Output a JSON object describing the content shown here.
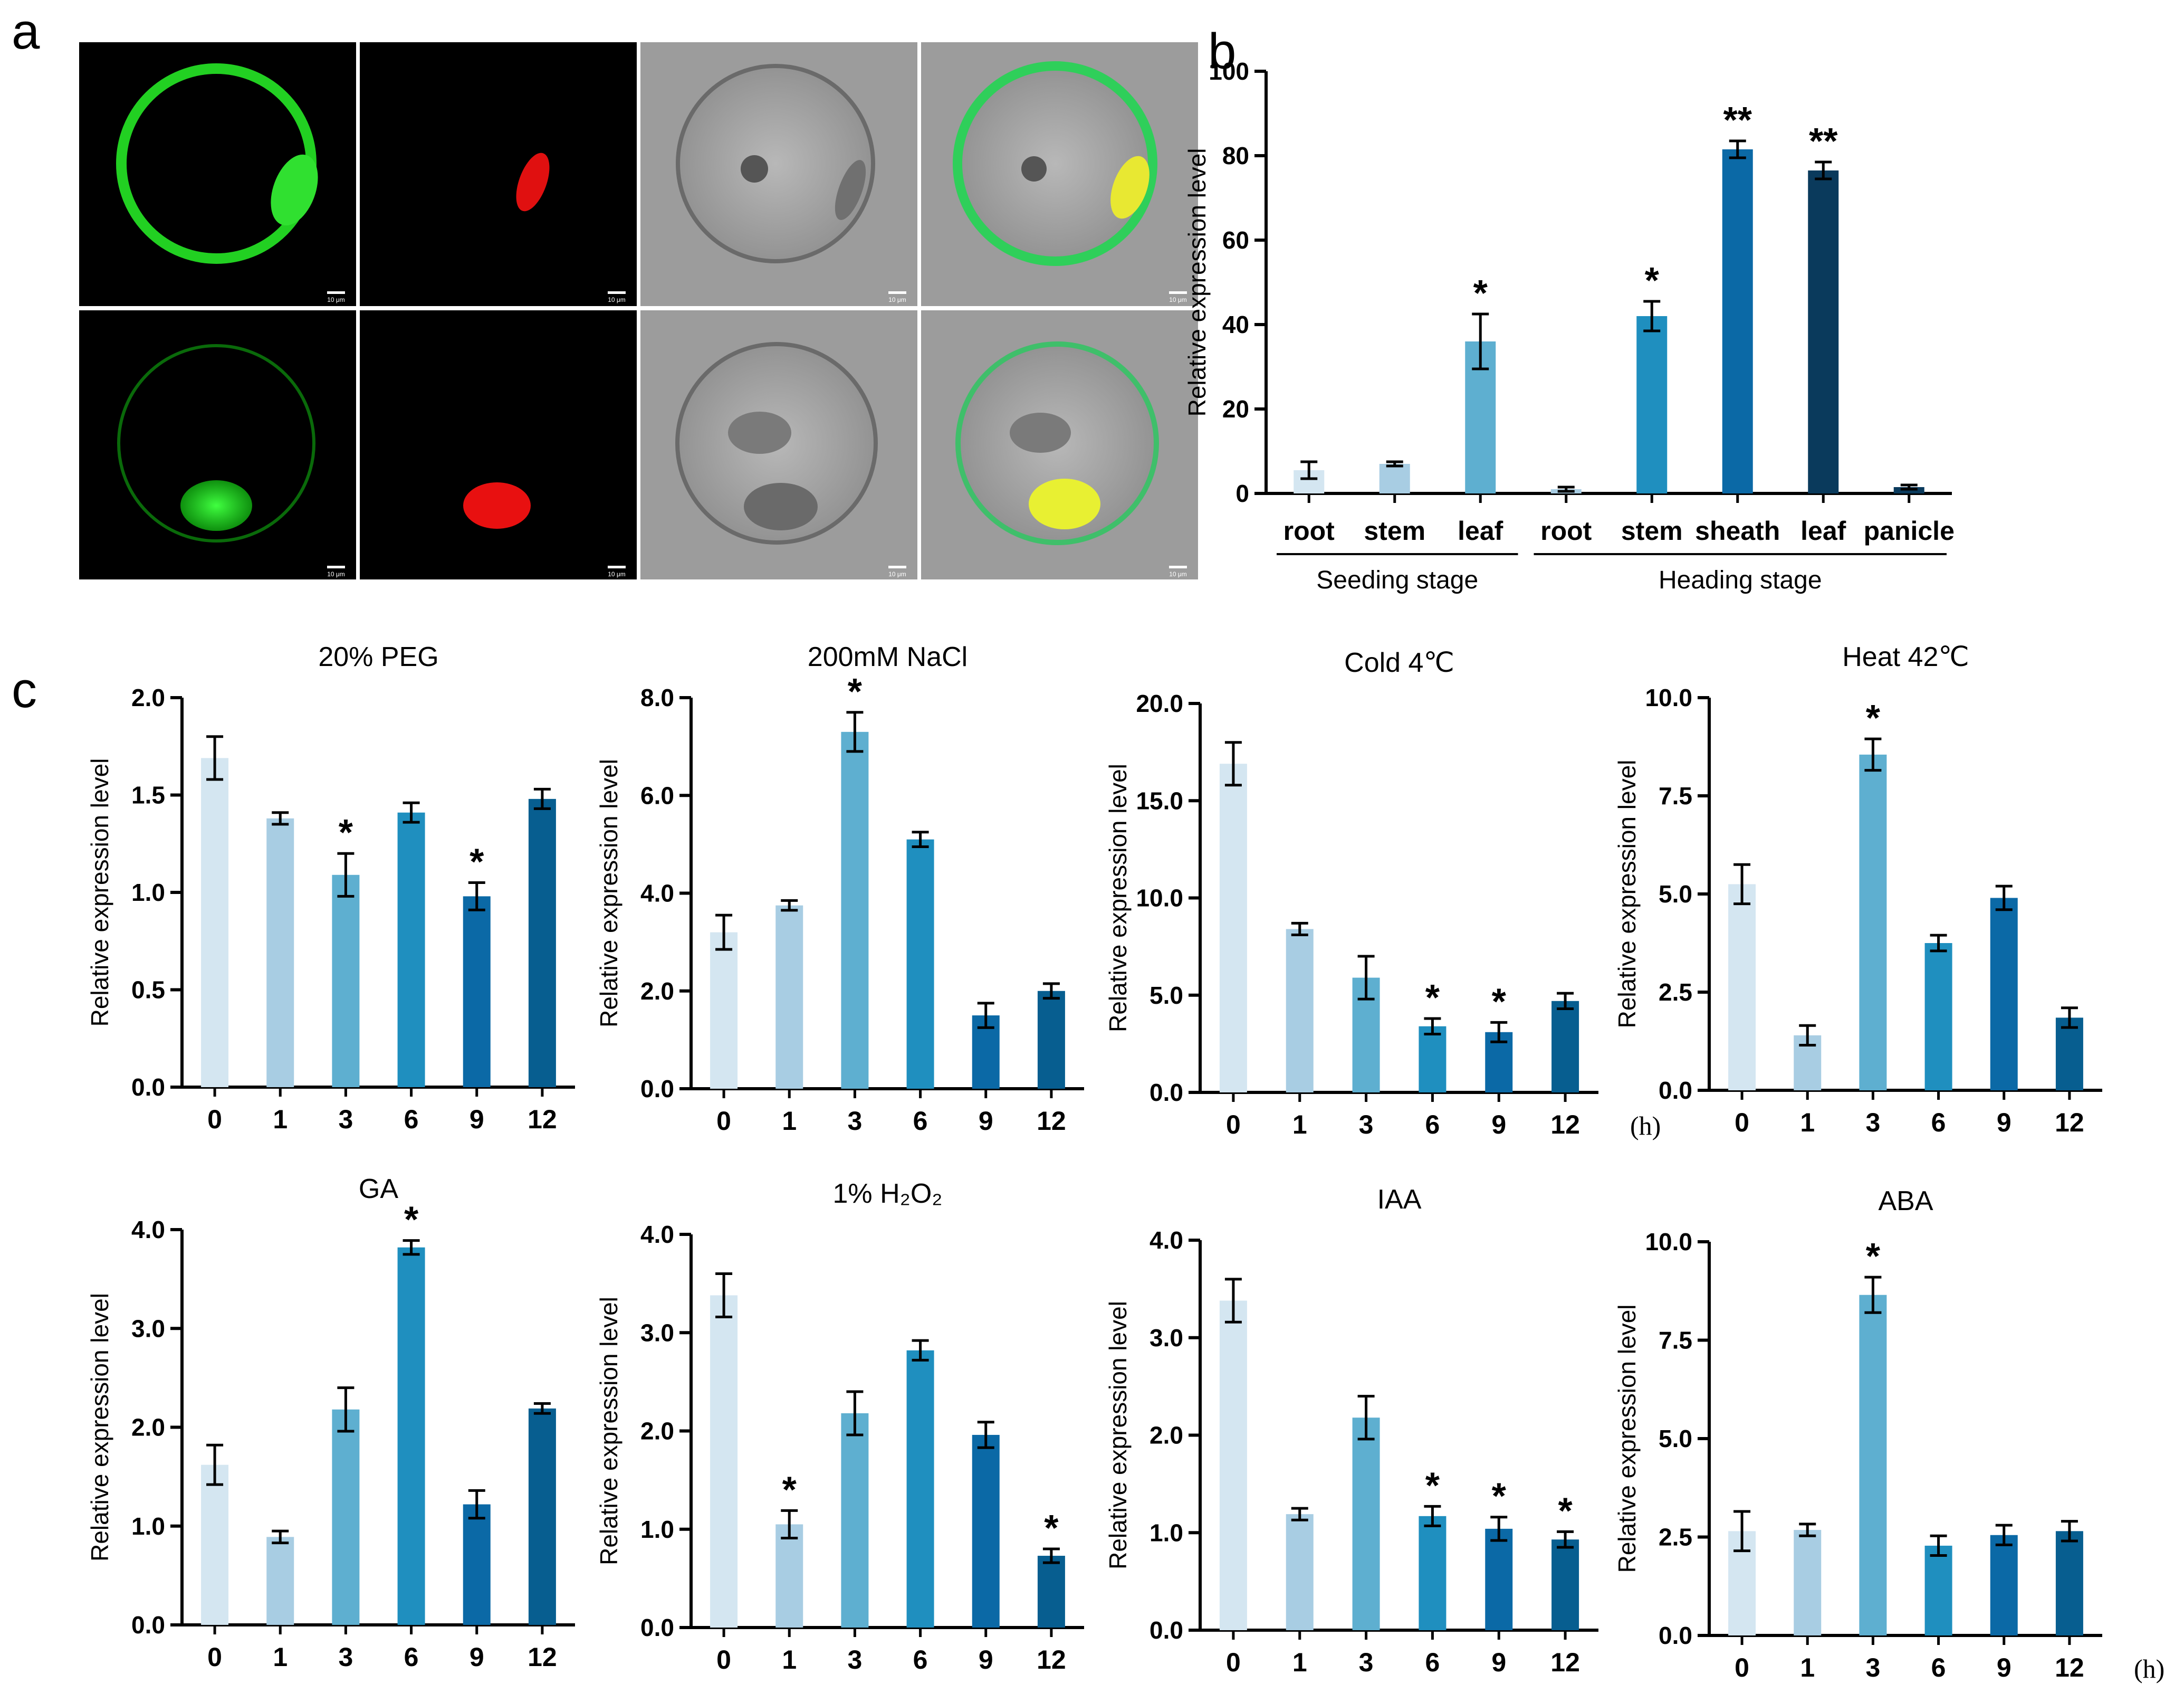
{
  "panel_labels": {
    "a": "a",
    "b": "b",
    "c": "c"
  },
  "microscopy": {
    "description_rows": 2,
    "scale_bar_label": "10 μm"
  },
  "colors": {
    "c0": "#d4e6f1",
    "c1": "#a8cde3",
    "c2": "#5eafd0",
    "c3": "#1f8fbf",
    "c4": "#0b69a6",
    "c5": "#075e90",
    "c6": "#0d4d74",
    "c7": "#0a3a5c"
  },
  "time_unit": "(h)",
  "chart_data": [
    {
      "id": "b",
      "type": "bar",
      "ylabel": "Relative expression level",
      "ylim": [
        0,
        100
      ],
      "yticks": [
        0,
        20,
        40,
        60,
        80,
        100
      ],
      "ytick_labels": [
        "0",
        "20",
        "40",
        "60",
        "80",
        "100"
      ],
      "categories": [
        "root",
        "stem",
        "leaf",
        "root",
        "stem",
        "sheath",
        "leaf",
        "panicle"
      ],
      "values": [
        5.5,
        7,
        36,
        1,
        42,
        81.5,
        76.5,
        1.5
      ],
      "errors": [
        2,
        0.5,
        6.5,
        0.5,
        3.5,
        2,
        2,
        0.5
      ],
      "significance": [
        "",
        "",
        "*",
        "",
        "*",
        "**",
        "**",
        ""
      ],
      "colors": [
        "#d4e6f1",
        "#a8cde3",
        "#5eafd0",
        "#a8cde3",
        "#1f8fbf",
        "#0b69a6",
        "#0a3a5c",
        "#0a3a5c"
      ],
      "groups": [
        {
          "label": "Seeding stage",
          "from": 0,
          "to": 2
        },
        {
          "label": "Heading stage",
          "from": 3,
          "to": 7
        }
      ]
    },
    {
      "id": "peg",
      "type": "bar",
      "title": "20% PEG",
      "ylabel": "Relative expression level",
      "ylim": [
        0,
        2.0
      ],
      "yticks": [
        0,
        0.5,
        1.0,
        1.5,
        2.0
      ],
      "ytick_labels": [
        "0.0",
        "0.5",
        "1.0",
        "1.5",
        "2.0"
      ],
      "categories": [
        "0",
        "1",
        "3",
        "6",
        "9",
        "12"
      ],
      "values": [
        1.69,
        1.38,
        1.09,
        1.41,
        0.98,
        1.48
      ],
      "errors": [
        0.11,
        0.03,
        0.11,
        0.05,
        0.07,
        0.05
      ],
      "significance": [
        "",
        "",
        "*",
        "",
        "*",
        ""
      ]
    },
    {
      "id": "nacl",
      "type": "bar",
      "title": "200mM NaCl",
      "ylabel": "Relative expression level",
      "ylim": [
        0,
        8.0
      ],
      "yticks": [
        0,
        2,
        4,
        6,
        8
      ],
      "ytick_labels": [
        "0.0",
        "2.0",
        "4.0",
        "6.0",
        "8.0"
      ],
      "categories": [
        "0",
        "1",
        "3",
        "6",
        "9",
        "12"
      ],
      "values": [
        3.2,
        3.75,
        7.3,
        5.1,
        1.5,
        2.0
      ],
      "errors": [
        0.35,
        0.1,
        0.4,
        0.15,
        0.25,
        0.15
      ],
      "significance": [
        "",
        "",
        "*",
        "",
        "",
        ""
      ]
    },
    {
      "id": "cold",
      "type": "bar",
      "title": "Cold  4℃",
      "ylabel": "Relative expression level",
      "ylim": [
        0,
        20.0
      ],
      "yticks": [
        0,
        5,
        10,
        15,
        20
      ],
      "ytick_labels": [
        "0.0",
        "5.0",
        "10.0",
        "15.0",
        "20.0"
      ],
      "categories": [
        "0",
        "1",
        "3",
        "6",
        "9",
        "12"
      ],
      "values": [
        16.9,
        8.4,
        5.9,
        3.4,
        3.1,
        4.7
      ],
      "errors": [
        1.1,
        0.3,
        1.1,
        0.4,
        0.5,
        0.4
      ],
      "significance": [
        "",
        "",
        "",
        "*",
        "*",
        ""
      ],
      "show_unit": true
    },
    {
      "id": "heat",
      "type": "bar",
      "title": "Heat  42℃",
      "ylabel": "Relative expression level",
      "ylim": [
        0,
        10.0
      ],
      "yticks": [
        0,
        2.5,
        5,
        7.5,
        10
      ],
      "ytick_labels": [
        "0.0",
        "2.5",
        "5.0",
        "7.5",
        "10.0"
      ],
      "categories": [
        "0",
        "1",
        "3",
        "6",
        "9",
        "12"
      ],
      "values": [
        5.25,
        1.4,
        8.55,
        3.75,
        4.9,
        1.85
      ],
      "errors": [
        0.5,
        0.25,
        0.4,
        0.2,
        0.3,
        0.25
      ],
      "significance": [
        "",
        "",
        "*",
        "",
        "",
        ""
      ]
    },
    {
      "id": "ga",
      "type": "bar",
      "title": "GA",
      "ylabel": "Relative expression level",
      "ylim": [
        0,
        4.0
      ],
      "yticks": [
        0,
        1,
        2,
        3,
        4
      ],
      "ytick_labels": [
        "0.0",
        "1.0",
        "2.0",
        "3.0",
        "4.0"
      ],
      "categories": [
        "0",
        "1",
        "3",
        "6",
        "9",
        "12"
      ],
      "values": [
        1.62,
        0.89,
        2.18,
        3.82,
        1.22,
        2.19
      ],
      "errors": [
        0.2,
        0.06,
        0.22,
        0.07,
        0.14,
        0.05
      ],
      "significance": [
        "",
        "",
        "",
        "*",
        "",
        ""
      ]
    },
    {
      "id": "h2o2",
      "type": "bar",
      "title": "1% H₂O₂",
      "ylabel": "Relative expression level",
      "ylim": [
        0,
        4.0
      ],
      "yticks": [
        0,
        1,
        2,
        3,
        4
      ],
      "ytick_labels": [
        "0.0",
        "1.0",
        "2.0",
        "3.0",
        "4.0"
      ],
      "categories": [
        "0",
        "1",
        "3",
        "6",
        "9",
        "12"
      ],
      "values": [
        3.38,
        1.05,
        2.18,
        2.82,
        1.96,
        0.73
      ],
      "errors": [
        0.22,
        0.14,
        0.22,
        0.1,
        0.13,
        0.07
      ],
      "significance": [
        "",
        "*",
        "",
        "",
        "",
        "*"
      ]
    },
    {
      "id": "iaa",
      "type": "bar",
      "title": "IAA",
      "ylabel": "Relative expression level",
      "ylim": [
        0,
        4.0
      ],
      "yticks": [
        0,
        1,
        2,
        3,
        4
      ],
      "ytick_labels": [
        "0.0",
        "1.0",
        "2.0",
        "3.0",
        "4.0"
      ],
      "categories": [
        "0",
        "1",
        "3",
        "6",
        "9",
        "12"
      ],
      "values": [
        3.38,
        1.19,
        2.18,
        1.17,
        1.04,
        0.93
      ],
      "errors": [
        0.22,
        0.06,
        0.22,
        0.1,
        0.12,
        0.08
      ],
      "significance": [
        "",
        "",
        "",
        "*",
        "*",
        "*"
      ]
    },
    {
      "id": "aba",
      "type": "bar",
      "title": "ABA",
      "ylabel": "Relative expression level",
      "ylim": [
        0,
        10.0
      ],
      "yticks": [
        0,
        2.5,
        5,
        7.5,
        10
      ],
      "ytick_labels": [
        "0.0",
        "2.5",
        "5.0",
        "7.5",
        "10.0"
      ],
      "categories": [
        "0",
        "1",
        "3",
        "6",
        "9",
        "12"
      ],
      "values": [
        2.65,
        2.68,
        8.65,
        2.28,
        2.55,
        2.65
      ],
      "errors": [
        0.5,
        0.15,
        0.45,
        0.25,
        0.25,
        0.25
      ],
      "significance": [
        "",
        "",
        "*",
        "",
        "",
        ""
      ],
      "show_unit": true
    }
  ]
}
